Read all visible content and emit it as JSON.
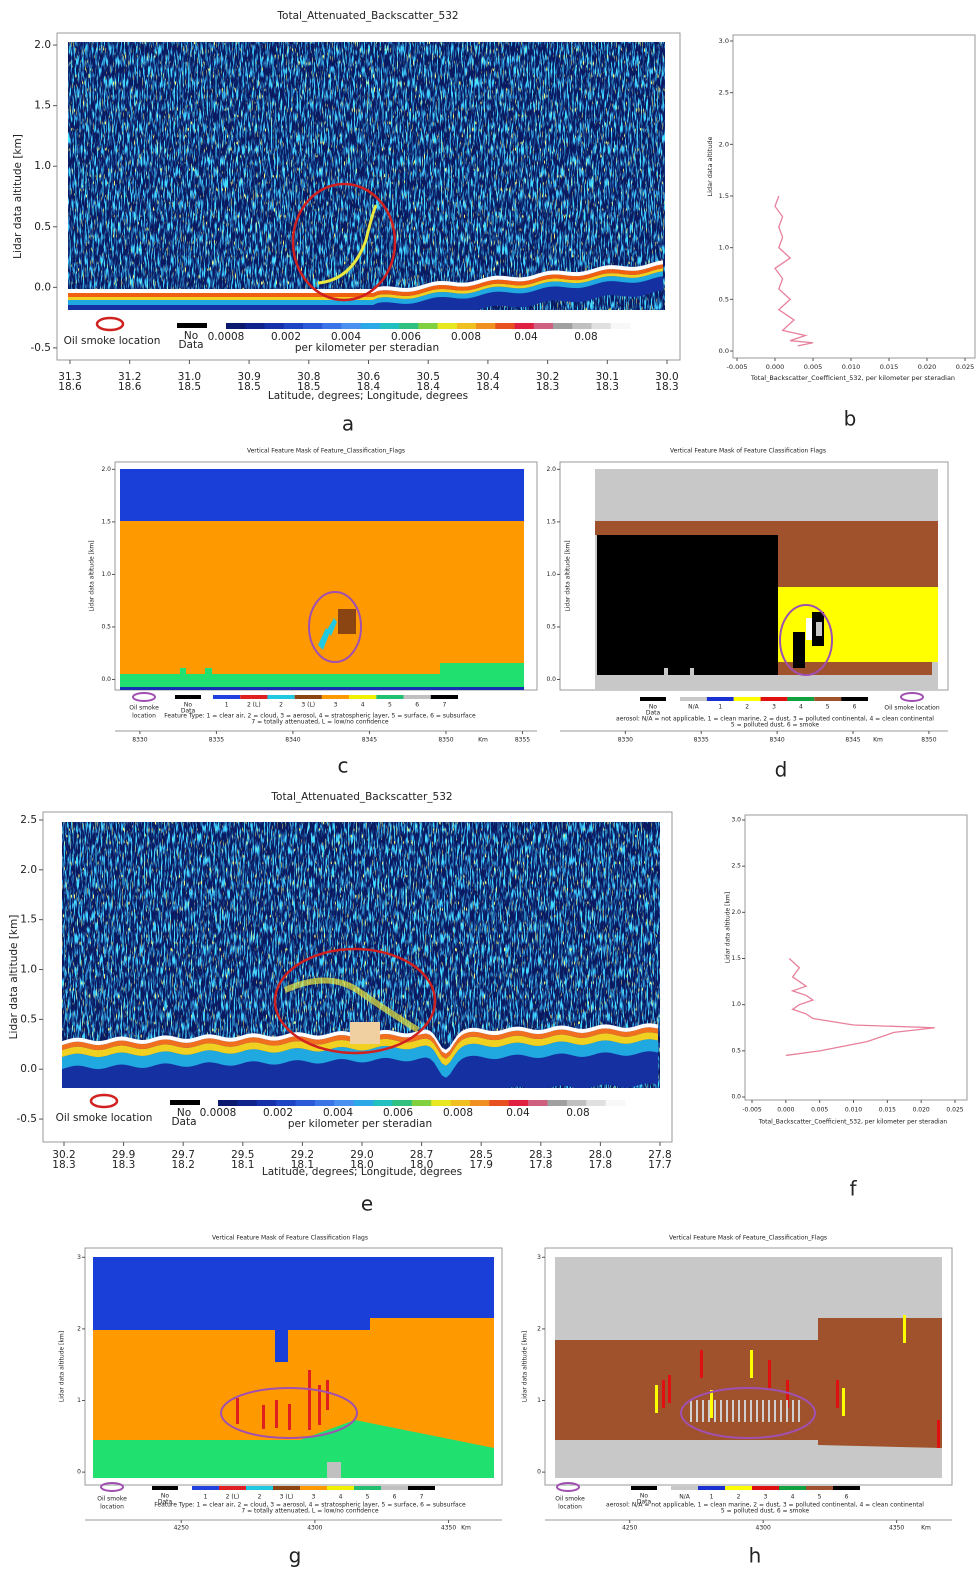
{
  "chart_data": [
    {
      "type": "curtain",
      "panel_label": "a",
      "title": "Total_Attenuated_Backscatter_532",
      "ylabel": "Lidar data altitude [km]",
      "xlabel": "Latitude, degrees; Longitude, degrees",
      "ylim": [
        -0.6,
        2.1
      ],
      "yticks": [
        {
          "value": -0.5,
          "label": "-0.5"
        },
        {
          "value": 0,
          "label": "0.0"
        },
        {
          "value": 0.5,
          "label": "0.5"
        },
        {
          "value": 1,
          "label": "1.0"
        },
        {
          "value": 1.5,
          "label": "1.5"
        },
        {
          "value": 2,
          "label": "2.0"
        }
      ],
      "categories": [
        "31.3",
        "31.2",
        "31.0",
        "30.9",
        "30.8",
        "30.6",
        "30.5",
        "30.4",
        "30.2",
        "30.1",
        "30.0"
      ],
      "categories2": [
        "18.6",
        "18.6",
        "18.5",
        "18.5",
        "18.5",
        "18.4",
        "18.4",
        "18.4",
        "18.3",
        "18.3",
        "18.3"
      ],
      "colorbar_labels": [
        "0.0008",
        "0.002",
        "0.004",
        "0.006",
        "0.008",
        "0.04",
        "0.08"
      ],
      "colorbar_unit": "per kilometer per steradian",
      "no_data": [
        "No",
        "Data"
      ],
      "legend": [
        "Oil smoke location"
      ]
    },
    {
      "type": "line",
      "panel_label": "b",
      "ylabel": "Lidar data altitude",
      "xlabel": "Total_Backscatter_Coefficient_532, per kilometer per steradian",
      "color": "#e8809c",
      "xlim": [
        -0.005,
        0.025
      ],
      "ylim": [
        0,
        3
      ],
      "xticks": [
        {
          "value": -0.005,
          "label": "-0.005"
        },
        {
          "value": 0,
          "label": "0.000"
        },
        {
          "value": 0.005,
          "label": "0.005"
        },
        {
          "value": 0.01,
          "label": "0.010"
        },
        {
          "value": 0.015,
          "label": "0.015"
        },
        {
          "value": 0.02,
          "label": "0.020"
        },
        {
          "value": 0.025,
          "label": "0.025"
        }
      ],
      "yticks": [
        {
          "value": 0,
          "label": "0.0"
        },
        {
          "value": 0.5,
          "label": "0.5"
        },
        {
          "value": 1,
          "label": "1.0"
        },
        {
          "value": 1.5,
          "label": "1.5"
        },
        {
          "value": 2,
          "label": "2.0"
        },
        {
          "value": 2.5,
          "label": "2.5"
        },
        {
          "value": 3,
          "label": "3.0"
        }
      ],
      "altitude": [
        0.05,
        0.08,
        0.1,
        0.15,
        0.2,
        0.3,
        0.4,
        0.5,
        0.6,
        0.7,
        0.8,
        0.9,
        1.0,
        1.1,
        1.2,
        1.3,
        1.4,
        1.5
      ],
      "values": [
        0.003,
        0.005,
        0.002,
        0.004,
        0.001,
        0.0025,
        0.0005,
        0.002,
        0.0005,
        0.001,
        0.0,
        0.002,
        0.0005,
        0.001,
        0.0005,
        0.001,
        0.0,
        0.0005
      ]
    },
    {
      "type": "mask",
      "panel_label": "c",
      "title": "Vertical Feature Mask of Feature_Classification_Flags",
      "ylabel": "Lidar data altitude [km]",
      "xlim": [
        8328.7,
        8355.1
      ],
      "ylim": [
        -0.1,
        2.07
      ],
      "yticks": [
        {
          "value": 0,
          "label": "0.0"
        },
        {
          "value": 0.5,
          "label": "0.5"
        },
        {
          "value": 1,
          "label": "1.0"
        },
        {
          "value": 1.5,
          "label": "1.5"
        },
        {
          "value": 2,
          "label": "2.0"
        }
      ],
      "xticks": [
        8330,
        8335,
        8340,
        8345,
        8350,
        8355
      ],
      "xunit": "Km",
      "legend": [
        "Oil smoke",
        "location"
      ],
      "no_data": [
        "No",
        "Data"
      ],
      "colorbar_labels": [
        "1",
        "2 (L)",
        "2",
        "3 (L)",
        "3",
        "4",
        "5",
        "6",
        "7"
      ],
      "colorbar_colors": [
        "#2040e0",
        "#e02020",
        "#20c8e0",
        "#8b4513",
        "#ff9900",
        "#f0f000",
        "#20c070",
        "#c0c0c0",
        "#000000"
      ],
      "description": [
        "Feature Type: 1 = clear air, 2 = cloud, 3 = aerosol, 4 = stratospheric layer, 5 = surface, 6 = subsurface",
        "7 = totally attenuated, L = low/no confidence"
      ]
    },
    {
      "type": "mask",
      "panel_label": "d",
      "title": "Vertical Feature Mask of Feature Classification Flags",
      "ylabel": "Lidar data altitude [km]",
      "xlim": [
        8328,
        8350.6
      ],
      "ylim": [
        -0.1,
        2.07
      ],
      "yticks": [
        {
          "value": 0,
          "label": "0.0"
        },
        {
          "value": 0.5,
          "label": "0.5"
        },
        {
          "value": 1,
          "label": "1.0"
        },
        {
          "value": 1.5,
          "label": "1.5"
        },
        {
          "value": 2,
          "label": "2.0"
        }
      ],
      "xticks": [
        8330,
        8335,
        8340,
        8345,
        8350
      ],
      "xunit": "Km",
      "legend": [
        "Oil smoke location"
      ],
      "no_data": [
        "No",
        "Data"
      ],
      "colorbar_labels": [
        "N/A",
        "1",
        "2",
        "3",
        "4",
        "5",
        "6"
      ],
      "colorbar_colors": [
        "#c8c8c8",
        "#1a30d0",
        "#ffff00",
        "#e01010",
        "#10a040",
        "#a0522d",
        "#000000"
      ],
      "description": [
        "aerosol: N/A = not applicable, 1 = clean marine, 2 = dust, 3 = polluted continental, 4 = clean continental",
        "5 = polluted dust, 6 = smoke"
      ]
    },
    {
      "type": "curtain",
      "panel_label": "e",
      "title": "Total_Attenuated_Backscatter_532",
      "ylabel": "Lidar data altitude [km]",
      "xlabel": "Latitude, degrees; Longitude, degrees",
      "ylim": [
        -0.73,
        2.58
      ],
      "yticks": [
        {
          "value": -0.5,
          "label": "-0.5"
        },
        {
          "value": 0,
          "label": "0.0"
        },
        {
          "value": 0.5,
          "label": "0.5"
        },
        {
          "value": 1,
          "label": "1.0"
        },
        {
          "value": 1.5,
          "label": "1.5"
        },
        {
          "value": 2,
          "label": "2.0"
        },
        {
          "value": 2.5,
          "label": "2.5"
        }
      ],
      "categories": [
        "30.2",
        "29.9",
        "29.7",
        "29.5",
        "29.2",
        "29.0",
        "28.7",
        "28.5",
        "28.3",
        "28.0",
        "27.8"
      ],
      "categories2": [
        "18.3",
        "18.3",
        "18.2",
        "18.1",
        "18.1",
        "18.0",
        "18.0",
        "17.9",
        "17.8",
        "17.8",
        "17.7"
      ],
      "colorbar_labels": [
        "0.0008",
        "0.002",
        "0.004",
        "0.006",
        "0.008",
        "0.04",
        "0.08"
      ],
      "colorbar_unit": "per kilometer per steradian",
      "no_data": [
        "No",
        "Data"
      ],
      "legend": [
        "Oil smoke location"
      ]
    },
    {
      "type": "line",
      "panel_label": "f",
      "ylabel": "Lidar data altitude [km]",
      "xlabel": "Total_Backscatter_Coefficient_532, per kilometer per steradian",
      "color": "#e8809c",
      "xlim": [
        -0.005,
        0.025
      ],
      "ylim": [
        0,
        3
      ],
      "xticks": [
        {
          "value": -0.005,
          "label": "-0.005"
        },
        {
          "value": 0,
          "label": "0.000"
        },
        {
          "value": 0.005,
          "label": "0.005"
        },
        {
          "value": 0.01,
          "label": "0.010"
        },
        {
          "value": 0.015,
          "label": "0.015"
        },
        {
          "value": 0.02,
          "label": "0.020"
        },
        {
          "value": 0.025,
          "label": "0.025"
        }
      ],
      "yticks": [
        {
          "value": 0,
          "label": "0.0"
        },
        {
          "value": 0.5,
          "label": "0.5"
        },
        {
          "value": 1,
          "label": "1.0"
        },
        {
          "value": 1.5,
          "label": "1.5"
        },
        {
          "value": 2,
          "label": "2.0"
        },
        {
          "value": 2.5,
          "label": "2.5"
        },
        {
          "value": 3,
          "label": "3.0"
        }
      ],
      "altitude": [
        0.45,
        0.5,
        0.6,
        0.7,
        0.75,
        0.78,
        0.85,
        0.9,
        0.95,
        1.0,
        1.05,
        1.1,
        1.15,
        1.2,
        1.3,
        1.4,
        1.5
      ],
      "values": [
        0.0,
        0.005,
        0.012,
        0.016,
        0.022,
        0.01,
        0.004,
        0.003,
        0.001,
        0.002,
        0.004,
        0.003,
        0.001,
        0.003,
        0.001,
        0.002,
        0.0005
      ]
    },
    {
      "type": "mask",
      "panel_label": "g",
      "title": "Vertical Feature Mask of Feature Classification Flags",
      "ylabel": "Lidar data altitude [km]",
      "xlim": [
        4217,
        4367
      ],
      "ylim": [
        -0.18,
        3.13
      ],
      "yticks": [
        0,
        1,
        2,
        3
      ],
      "xticks": [
        4250,
        4300,
        4350
      ],
      "xunit": "Km",
      "legend": [
        "Oil smoke",
        "location"
      ],
      "no_data": [
        "No",
        "Data"
      ],
      "colorbar_labels": [
        "1",
        "2 (L)",
        "2",
        "3 (L)",
        "3",
        "4",
        "5",
        "6",
        "7"
      ],
      "colorbar_colors": [
        "#2040e0",
        "#e02020",
        "#20c8e0",
        "#8b4513",
        "#ff9900",
        "#f0f000",
        "#20c070",
        "#c0c0c0",
        "#000000"
      ],
      "description": [
        "Feature Type: 1 = clear air, 2 = cloud, 3 = aerosol, 4 = stratospheric layer, 5 = surface, 6 = subsurface",
        "7 = totally attenuated, L = low/no confidence"
      ]
    },
    {
      "type": "mask",
      "panel_label": "h",
      "title": "Vertical Feature Mask of Feature_Classification_Flags",
      "ylabel": "Lidar data altitude [km]",
      "xlim": [
        4222,
        4367
      ],
      "ylim": [
        -0.18,
        3.13
      ],
      "yticks": [
        0,
        1,
        2,
        3
      ],
      "xticks": [
        4250,
        4300,
        4350
      ],
      "xunit": "Km",
      "legend": [
        "Oil smoke",
        "location"
      ],
      "no_data": [
        "No",
        "Data"
      ],
      "colorbar_labels": [
        "N/A",
        "1",
        "2",
        "3",
        "4",
        "5",
        "6"
      ],
      "colorbar_colors": [
        "#c8c8c8",
        "#1a30d0",
        "#ffff00",
        "#e01010",
        "#10a040",
        "#a0522d",
        "#000000"
      ],
      "description": [
        "aerosol: N/A = not applicable, 1 = clean marine, 2 = dust, 3 = polluted continental, 4 = clean continental",
        "5 = polluted dust, 6 = smoke"
      ]
    }
  ]
}
